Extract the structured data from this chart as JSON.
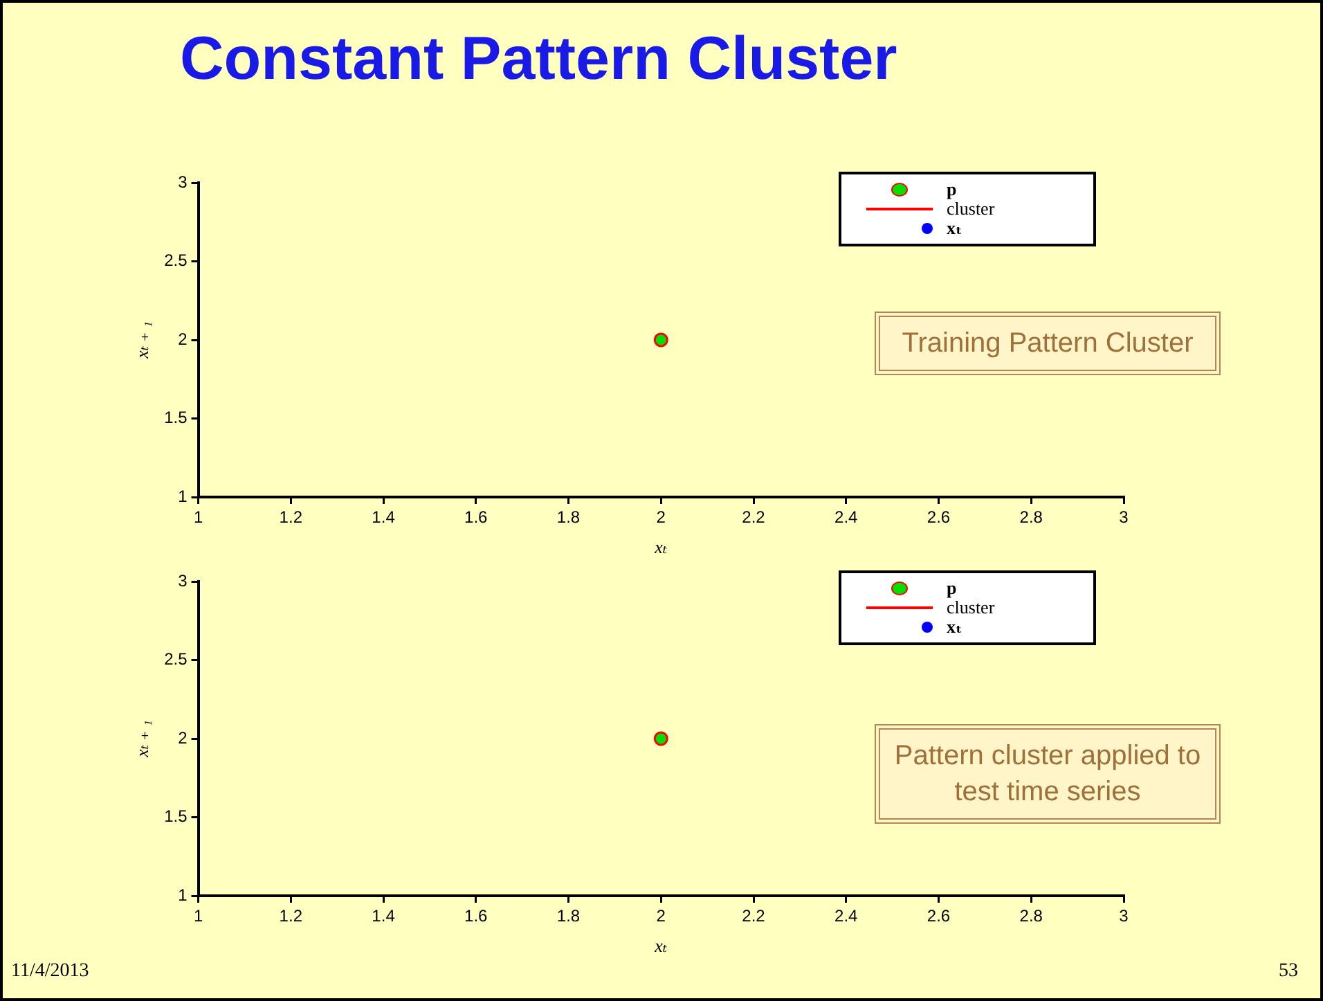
{
  "chart_data": [
    {
      "type": "scatter",
      "title": "Constant Pattern Cluster",
      "xlabel": "xₜ",
      "ylabel": "xₜ ₊ ₁",
      "xlim": [
        1,
        3
      ],
      "ylim": [
        1,
        3
      ],
      "xticks": [
        1,
        1.2,
        1.4,
        1.6,
        1.8,
        2,
        2.2,
        2.4,
        2.6,
        2.8,
        3
      ],
      "yticks": [
        1,
        1.5,
        2,
        2.5,
        3
      ],
      "grid": false,
      "legend": "top right",
      "marker": "circle",
      "series": [
        {
          "name": "p",
          "color": "#00e000",
          "x": [
            2
          ],
          "values": [
            2
          ]
        },
        {
          "name": "cluster",
          "type": "line",
          "color": "#ff0000"
        },
        {
          "name": "xₜ",
          "color": "#0000ff"
        }
      ],
      "annotations": [
        "Training Pattern Cluster"
      ]
    },
    {
      "type": "scatter",
      "xlabel": "xₜ",
      "ylabel": "xₜ ₊ ₁",
      "xlim": [
        1,
        3
      ],
      "ylim": [
        1,
        3
      ],
      "xticks": [
        1,
        1.2,
        1.4,
        1.6,
        1.8,
        2,
        2.2,
        2.4,
        2.6,
        2.8,
        3
      ],
      "yticks": [
        1,
        1.5,
        2,
        2.5,
        3
      ],
      "grid": false,
      "legend": "top right",
      "marker": "circle",
      "series": [
        {
          "name": "p",
          "color": "#00e000",
          "x": [
            2
          ],
          "values": [
            2
          ]
        },
        {
          "name": "cluster",
          "type": "line",
          "color": "#ff0000"
        },
        {
          "name": "xₜ",
          "color": "#0000ff"
        }
      ],
      "annotations": [
        "Pattern cluster applied to test time series",
        "11/4/2013",
        "53"
      ]
    }
  ]
}
